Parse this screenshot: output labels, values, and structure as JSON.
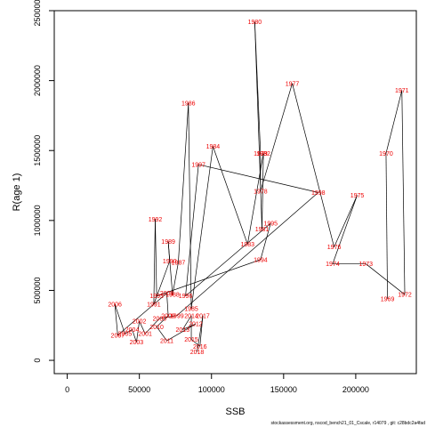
{
  "footer": "stockassessment.org,  nscod_bench21_01_Cscale,  r14079 ,  git: c28bdc2a4fad",
  "chart_data": {
    "type": "scatter",
    "connected": true,
    "title": "",
    "xlabel": "SSB",
    "ylabel": "R(age 1)",
    "xlim": [
      -9000,
      242000
    ],
    "ylim": [
      -95000,
      2500000
    ],
    "xticks": [
      0,
      50000,
      100000,
      150000,
      200000
    ],
    "yticks": [
      0,
      500000,
      1000000,
      1500000,
      2000000,
      2500000
    ],
    "xtick_labels": [
      "0",
      "50000",
      "100000",
      "150000",
      "200000"
    ],
    "ytick_labels": [
      "0",
      "500000",
      "1000000",
      "1500000",
      "2000000",
      "2500000"
    ],
    "grid": false,
    "line_color": "#000000",
    "label_color": "#ee0000",
    "points": [
      {
        "label": "1969",
        "x": 222000,
        "y": 440000
      },
      {
        "label": "1970",
        "x": 221000,
        "y": 1480000
      },
      {
        "label": "1971",
        "x": 232000,
        "y": 1930000
      },
      {
        "label": "1972",
        "x": 234000,
        "y": 470000
      },
      {
        "label": "1973",
        "x": 207000,
        "y": 690000
      },
      {
        "label": "1974",
        "x": 184000,
        "y": 690000
      },
      {
        "label": "1975",
        "x": 201000,
        "y": 1180000
      },
      {
        "label": "1976",
        "x": 185000,
        "y": 810000
      },
      {
        "label": "1977",
        "x": 156000,
        "y": 1980000
      },
      {
        "label": "1978",
        "x": 134000,
        "y": 1210000
      },
      {
        "label": "1979",
        "x": 134000,
        "y": 1480000
      },
      {
        "label": "1980",
        "x": 130000,
        "y": 2420000
      },
      {
        "label": "1981",
        "x": 135000,
        "y": 940000
      },
      {
        "label": "1982",
        "x": 136000,
        "y": 1480000
      },
      {
        "label": "1983",
        "x": 125000,
        "y": 830000
      },
      {
        "label": "1984",
        "x": 101000,
        "y": 1530000
      },
      {
        "label": "1985",
        "x": 86000,
        "y": 370000
      },
      {
        "label": "1986",
        "x": 84000,
        "y": 1840000
      },
      {
        "label": "1987",
        "x": 77000,
        "y": 700000
      },
      {
        "label": "1988",
        "x": 73000,
        "y": 470000
      },
      {
        "label": "1989",
        "x": 70000,
        "y": 850000
      },
      {
        "label": "1990",
        "x": 71000,
        "y": 710000
      },
      {
        "label": "1991",
        "x": 60000,
        "y": 400000
      },
      {
        "label": "1992",
        "x": 61000,
        "y": 1010000
      },
      {
        "label": "1993",
        "x": 62000,
        "y": 460000
      },
      {
        "label": "1994",
        "x": 134000,
        "y": 720000
      },
      {
        "label": "1995",
        "x": 141000,
        "y": 980000
      },
      {
        "label": "1996",
        "x": 82000,
        "y": 460000
      },
      {
        "label": "1997",
        "x": 91000,
        "y": 1400000
      },
      {
        "label": "1998",
        "x": 174000,
        "y": 1200000
      },
      {
        "label": "1999",
        "x": 76000,
        "y": 320000
      },
      {
        "label": "2000",
        "x": 64000,
        "y": 300000
      },
      {
        "label": "2001",
        "x": 54000,
        "y": 190000
      },
      {
        "label": "2002",
        "x": 50000,
        "y": 280000
      },
      {
        "label": "2003",
        "x": 48000,
        "y": 130000
      },
      {
        "label": "2004",
        "x": 45000,
        "y": 220000
      },
      {
        "label": "2005",
        "x": 40000,
        "y": 190000
      },
      {
        "label": "2006",
        "x": 33000,
        "y": 400000
      },
      {
        "label": "2007",
        "x": 35000,
        "y": 180000
      },
      {
        "label": "2008",
        "x": 69000,
        "y": 480000
      },
      {
        "label": "2009",
        "x": 70000,
        "y": 320000
      },
      {
        "label": "2010",
        "x": 62000,
        "y": 240000
      },
      {
        "label": "2011",
        "x": 69000,
        "y": 140000
      },
      {
        "label": "2012",
        "x": 89000,
        "y": 260000
      },
      {
        "label": "2013",
        "x": 80000,
        "y": 220000
      },
      {
        "label": "2014",
        "x": 86000,
        "y": 320000
      },
      {
        "label": "2015",
        "x": 86000,
        "y": 150000
      },
      {
        "label": "2016",
        "x": 92000,
        "y": 100000
      },
      {
        "label": "2017",
        "x": 94000,
        "y": 320000
      },
      {
        "label": "2018",
        "x": 90000,
        "y": 60000
      }
    ]
  }
}
